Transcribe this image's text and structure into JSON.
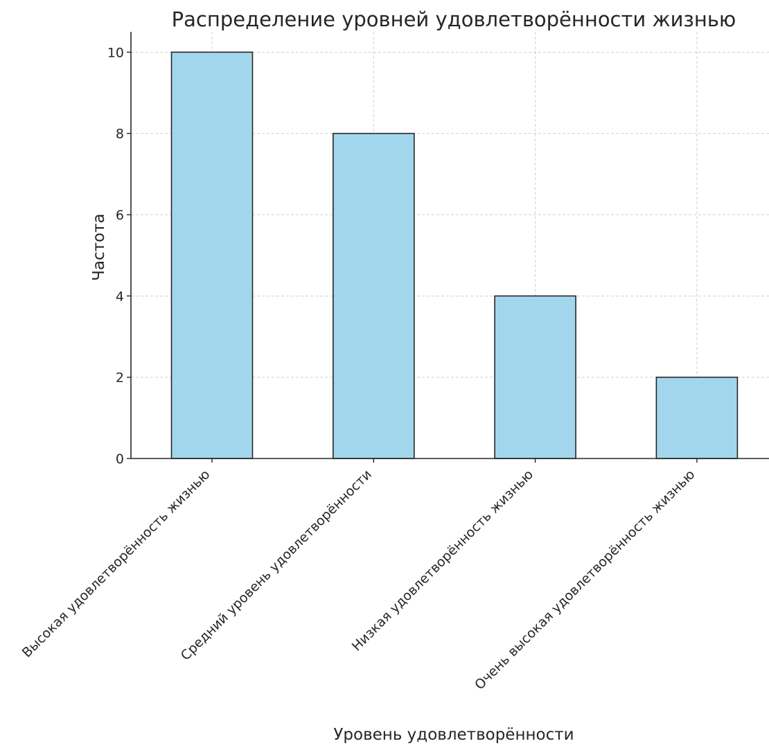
{
  "chart_data": {
    "type": "bar",
    "title": "Распределение уровней удовлетворённости жизнью",
    "xlabel": "Уровень удовлетворённости",
    "ylabel": "Частота",
    "categories": [
      "Высокая удовлетворённость жизнью",
      "Средний уровень удовлетворённости",
      "Низкая удовлетворённость жизнью",
      "Очень высокая удовлетворённость жизнью"
    ],
    "values": [
      10,
      8,
      4,
      2
    ],
    "ylim": [
      0,
      10.5
    ],
    "yticks": [
      "0",
      "2",
      "4",
      "6",
      "8",
      "10"
    ],
    "grid": true,
    "colors": {
      "bar_fill": "#a2d6ec",
      "bar_edge": "#262626",
      "grid": "#cfcfcf"
    }
  }
}
